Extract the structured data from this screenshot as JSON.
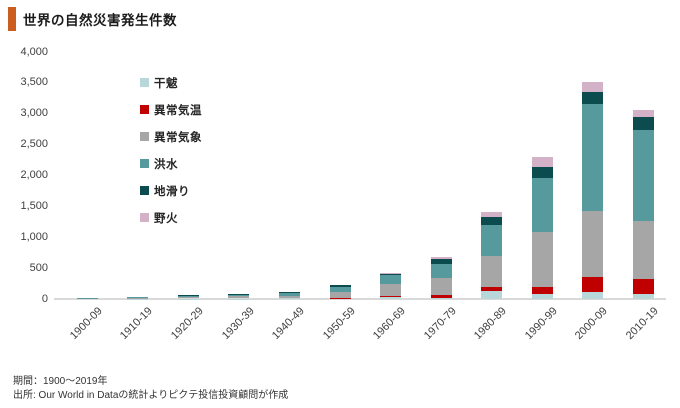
{
  "header": {
    "title": "世界の自然災害発生件数",
    "accent_color": "#cb5d1f"
  },
  "chart_data": {
    "type": "bar",
    "stacked": true,
    "title": "世界の自然災害発生件数",
    "categories": [
      "1900-09",
      "1910-19",
      "1920-29",
      "1930-39",
      "1940-49",
      "1950-59",
      "1960-69",
      "1970-79",
      "1980-89",
      "1990-99",
      "2000-09",
      "2010-19"
    ],
    "series": [
      {
        "name": "干魃",
        "color": "#b7d7da",
        "values": [
          3,
          5,
          6,
          7,
          9,
          10,
          25,
          15,
          125,
          85,
          120,
          85
        ]
      },
      {
        "name": "異常気温",
        "color": "#c00000",
        "values": [
          1,
          1,
          2,
          3,
          4,
          5,
          25,
          45,
          65,
          110,
          235,
          245
        ]
      },
      {
        "name": "異常気象",
        "color": "#a6a6a6",
        "values": [
          6,
          9,
          25,
          32,
          40,
          100,
          195,
          280,
          505,
          895,
          1070,
          935
        ]
      },
      {
        "name": "洪水",
        "color": "#579a9d",
        "values": [
          9,
          12,
          28,
          38,
          50,
          85,
          140,
          225,
          505,
          870,
          1740,
          1470
        ]
      },
      {
        "name": "地滑り",
        "color": "#0c4c4f",
        "values": [
          2,
          3,
          6,
          6,
          8,
          28,
          35,
          85,
          130,
          170,
          190,
          205
        ]
      },
      {
        "name": "野火",
        "color": "#d3b1c6",
        "values": [
          0,
          1,
          2,
          2,
          2,
          2,
          5,
          35,
          80,
          165,
          160,
          120
        ]
      }
    ],
    "ylim": [
      0,
      4000
    ],
    "yticks": [
      0,
      500,
      1000,
      1500,
      2000,
      2500,
      3000,
      3500,
      4000
    ],
    "ytick_labels": [
      "0",
      "500",
      "1,000",
      "1,500",
      "2,000",
      "2,500",
      "3,000",
      "3,500",
      "4,000"
    ],
    "xlabel": "",
    "ylabel": "",
    "grid": false,
    "legend_position": "upper-left-inside",
    "axis_text_color": "#404040",
    "baseline_color": "#d9d9d9"
  },
  "footer": {
    "period": "期間：1900～2019年",
    "source": "出所: Our World in Dataの統計よりピクテ投信投資顧問が作成"
  }
}
